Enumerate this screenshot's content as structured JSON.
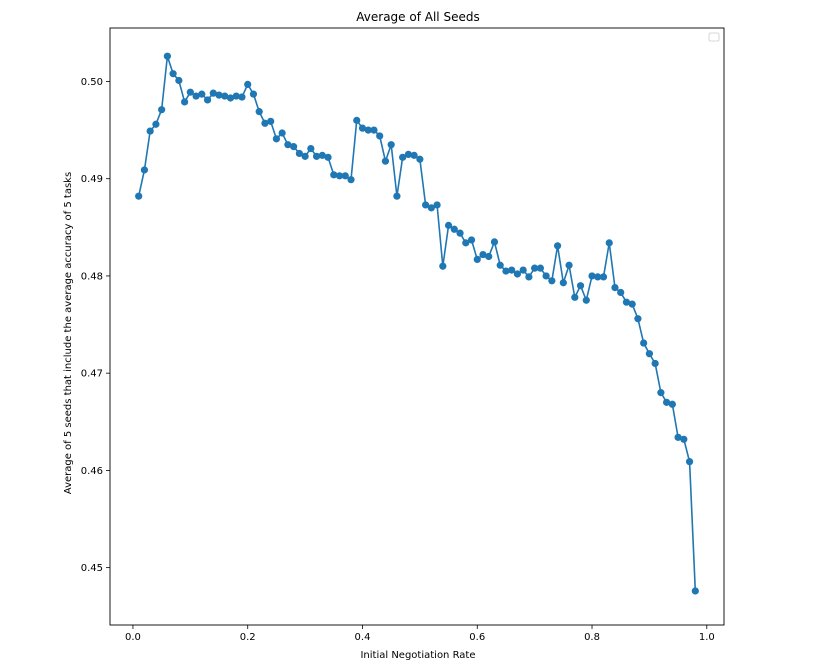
{
  "chart_data": {
    "type": "line",
    "title": "Average of All Seeds",
    "xlabel": "Initial Negotiation Rate",
    "ylabel": "Average of 5 seeds that include the average accuracy of 5 tasks",
    "xlim": [
      -0.04,
      1.03
    ],
    "ylim": [
      0.4441,
      0.5055
    ],
    "xticks": [
      0.0,
      0.2,
      0.4,
      0.6,
      0.8,
      1.0
    ],
    "xtick_labels": [
      "0.0",
      "0.2",
      "0.4",
      "0.6",
      "0.8",
      "1.0"
    ],
    "yticks": [
      0.45,
      0.46,
      0.47,
      0.48,
      0.49,
      0.5
    ],
    "ytick_labels": [
      "0.45",
      "0.46",
      "0.47",
      "0.48",
      "0.49",
      "0.50"
    ],
    "grid": false,
    "legend": "top-right, empty",
    "marker": "circle",
    "line_color": "#1f77b4",
    "x": [
      0.01,
      0.02,
      0.03,
      0.04,
      0.05,
      0.06,
      0.07,
      0.08,
      0.09,
      0.1,
      0.11,
      0.12,
      0.13,
      0.14,
      0.15,
      0.16,
      0.17,
      0.18,
      0.19,
      0.2,
      0.21,
      0.22,
      0.23,
      0.24,
      0.25,
      0.26,
      0.27,
      0.28,
      0.29,
      0.3,
      0.31,
      0.32,
      0.33,
      0.34,
      0.35,
      0.36,
      0.37,
      0.38,
      0.39,
      0.4,
      0.41,
      0.42,
      0.43,
      0.44,
      0.45,
      0.46,
      0.47,
      0.48,
      0.49,
      0.5,
      0.51,
      0.52,
      0.53,
      0.54,
      0.55,
      0.56,
      0.57,
      0.58,
      0.59,
      0.6,
      0.61,
      0.62,
      0.63,
      0.64,
      0.65,
      0.66,
      0.67,
      0.68,
      0.69,
      0.7,
      0.71,
      0.72,
      0.73,
      0.74,
      0.75,
      0.76,
      0.77,
      0.78,
      0.79,
      0.8,
      0.81,
      0.82,
      0.83,
      0.84,
      0.85,
      0.86,
      0.87,
      0.88,
      0.89,
      0.9,
      0.91,
      0.92,
      0.93,
      0.94,
      0.95,
      0.96,
      0.97,
      0.98
    ],
    "series": [
      {
        "values": [
          0.4882,
          0.4909,
          0.4949,
          0.4956,
          0.4971,
          0.5026,
          0.5008,
          0.5001,
          0.4979,
          0.4989,
          0.4985,
          0.4987,
          0.4981,
          0.4988,
          0.4986,
          0.4985,
          0.4983,
          0.4985,
          0.4984,
          0.4997,
          0.4987,
          0.4969,
          0.4957,
          0.4959,
          0.4941,
          0.4947,
          0.4935,
          0.4933,
          0.4926,
          0.4923,
          0.4931,
          0.4923,
          0.4924,
          0.4922,
          0.4904,
          0.4903,
          0.4903,
          0.4899,
          0.496,
          0.4952,
          0.495,
          0.495,
          0.4944,
          0.4918,
          0.4935,
          0.4882,
          0.4922,
          0.4925,
          0.4924,
          0.492,
          0.4873,
          0.487,
          0.4873,
          0.481,
          0.4852,
          0.4848,
          0.4844,
          0.4834,
          0.4837,
          0.4817,
          0.4822,
          0.482,
          0.4835,
          0.4811,
          0.4805,
          0.4806,
          0.4802,
          0.4806,
          0.4799,
          0.4808,
          0.4808,
          0.48,
          0.4795,
          0.4831,
          0.4793,
          0.4811,
          0.4778,
          0.479,
          0.4775,
          0.48,
          0.4799,
          0.4799,
          0.4834,
          0.4788,
          0.4783,
          0.4773,
          0.4771,
          0.4756,
          0.4731,
          0.472,
          0.471,
          0.468,
          0.467,
          0.4668,
          0.4634,
          0.4632,
          0.4609,
          0.4476
        ]
      }
    ]
  }
}
